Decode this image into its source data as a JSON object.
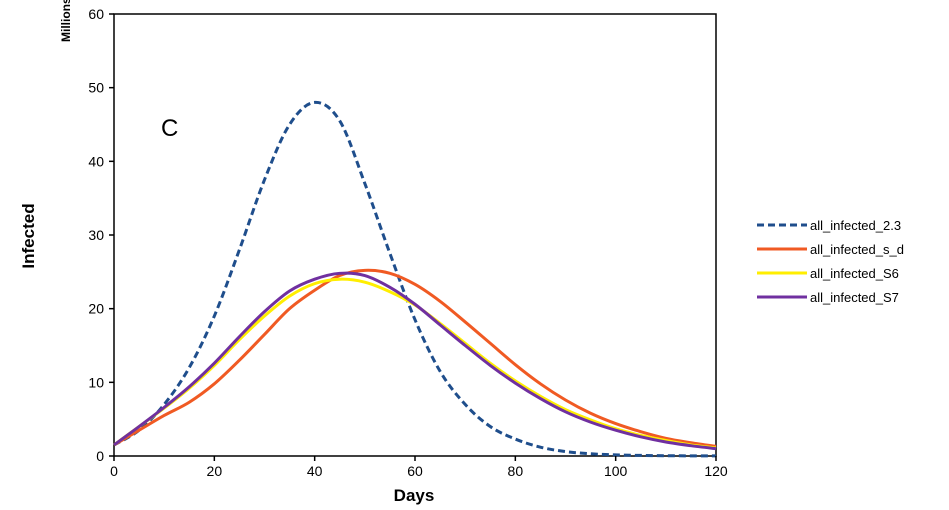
{
  "chart_data": {
    "type": "line",
    "panel_label": "C",
    "xlabel": "Days",
    "ylabel": "Infected",
    "yunit": "Millions",
    "xlim": [
      0,
      120
    ],
    "ylim": [
      0,
      60
    ],
    "xticks": [
      0,
      20,
      40,
      60,
      80,
      100,
      120
    ],
    "yticks": [
      0,
      10,
      20,
      30,
      40,
      50,
      60
    ],
    "grid": false,
    "legend_position": "right",
    "series": [
      {
        "name": "all_infected_2.3",
        "color": "#1f4e8c",
        "dash": "dashed",
        "x": [
          0,
          5,
          10,
          15,
          20,
          25,
          30,
          35,
          40,
          45,
          50,
          55,
          60,
          65,
          70,
          75,
          80,
          85,
          90,
          95,
          100,
          105,
          110,
          115,
          120
        ],
        "y": [
          1.5,
          3.5,
          7.0,
          12.0,
          19.0,
          28.0,
          37.5,
          45.0,
          48.0,
          45.5,
          37.0,
          27.5,
          18.5,
          11.5,
          7.0,
          4.0,
          2.3,
          1.2,
          0.6,
          0.3,
          0.15,
          0.08,
          0.04,
          0.02,
          0.01
        ]
      },
      {
        "name": "all_infected_s_d",
        "color": "#f05a23",
        "dash": "solid",
        "x": [
          0,
          5,
          10,
          15,
          20,
          25,
          30,
          35,
          40,
          45,
          50,
          55,
          60,
          65,
          70,
          75,
          80,
          85,
          90,
          95,
          100,
          105,
          110,
          115,
          120
        ],
        "y": [
          1.5,
          3.5,
          5.5,
          7.3,
          9.8,
          13.0,
          16.5,
          20.0,
          22.5,
          24.5,
          25.2,
          24.8,
          23.3,
          21.0,
          18.2,
          15.3,
          12.4,
          9.8,
          7.6,
          5.8,
          4.4,
          3.3,
          2.4,
          1.8,
          1.3
        ]
      },
      {
        "name": "all_infected_S6",
        "color": "#ffee00",
        "dash": "solid",
        "x": [
          0,
          5,
          10,
          15,
          20,
          25,
          30,
          35,
          40,
          45,
          50,
          55,
          60,
          65,
          70,
          75,
          80,
          85,
          90,
          95,
          100,
          105,
          110,
          115,
          120
        ],
        "y": [
          1.5,
          4.0,
          6.5,
          9.2,
          12.3,
          15.8,
          19.0,
          21.7,
          23.4,
          24.0,
          23.6,
          22.3,
          20.5,
          18.0,
          15.3,
          12.6,
          10.2,
          8.1,
          6.3,
          4.9,
          3.7,
          2.8,
          2.1,
          1.5,
          1.1
        ]
      },
      {
        "name": "all_infected_S7",
        "color": "#7030a0",
        "dash": "solid",
        "x": [
          0,
          5,
          10,
          15,
          20,
          25,
          30,
          35,
          40,
          45,
          50,
          55,
          60,
          65,
          70,
          75,
          80,
          85,
          90,
          95,
          100,
          105,
          110,
          115,
          120
        ],
        "y": [
          1.5,
          4.0,
          6.6,
          9.4,
          12.6,
          16.2,
          19.6,
          22.4,
          24.0,
          24.8,
          24.5,
          22.9,
          20.6,
          17.8,
          15.0,
          12.3,
          9.9,
          7.8,
          6.0,
          4.6,
          3.5,
          2.6,
          1.9,
          1.4,
          1.0
        ]
      }
    ]
  }
}
